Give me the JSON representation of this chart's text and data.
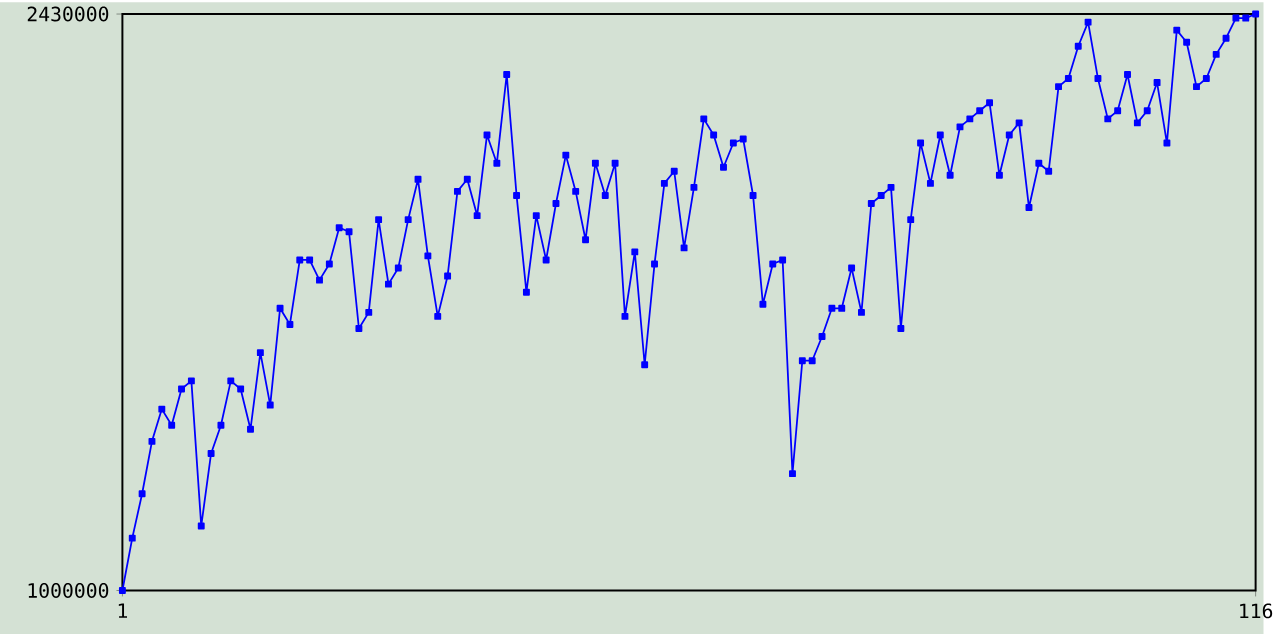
{
  "chart_data": {
    "type": "line",
    "color": "#0000ff",
    "marker": "square",
    "line_style": "solid",
    "xlim": [
      1,
      116
    ],
    "xticks": [
      1,
      116
    ],
    "ylim": [
      1000000,
      2430000
    ],
    "yticks": [
      1000000,
      2430000
    ],
    "x": [
      1,
      2,
      3,
      4,
      5,
      6,
      7,
      8,
      9,
      10,
      11,
      12,
      13,
      14,
      15,
      16,
      17,
      18,
      19,
      20,
      21,
      22,
      23,
      24,
      25,
      26,
      27,
      28,
      29,
      30,
      31,
      32,
      33,
      34,
      35,
      36,
      37,
      38,
      39,
      40,
      41,
      42,
      43,
      44,
      45,
      46,
      47,
      48,
      49,
      50,
      51,
      52,
      53,
      54,
      55,
      56,
      57,
      58,
      59,
      60,
      61,
      62,
      63,
      64,
      65,
      66,
      67,
      68,
      69,
      70,
      71,
      72,
      73,
      74,
      75,
      76,
      77,
      78,
      79,
      80,
      81,
      82,
      83,
      84,
      85,
      86,
      87,
      88,
      89,
      90,
      91,
      92,
      93,
      94,
      95,
      96,
      97,
      98,
      99,
      100,
      101,
      102,
      103,
      104,
      105,
      106,
      107,
      108,
      109,
      110,
      111,
      112,
      113,
      114,
      115,
      116
    ],
    "values": [
      1000000,
      1130000,
      1240000,
      1370000,
      1450000,
      1410000,
      1500000,
      1520000,
      1160000,
      1340000,
      1410000,
      1520000,
      1500000,
      1400000,
      1590000,
      1460000,
      1700000,
      1660000,
      1820000,
      1820000,
      1770000,
      1810000,
      1900000,
      1890000,
      1650000,
      1690000,
      1920000,
      1760000,
      1800000,
      1920000,
      2020000,
      1830000,
      1680000,
      1780000,
      1990000,
      2020000,
      1930000,
      2130000,
      2060000,
      2280000,
      1980000,
      1740000,
      1930000,
      1820000,
      1960000,
      2080000,
      1990000,
      1870000,
      2060000,
      1980000,
      2060000,
      1680000,
      1840000,
      1560000,
      1810000,
      2010000,
      2040000,
      1850000,
      2000000,
      2170000,
      2130000,
      2050000,
      2110000,
      2120000,
      1980000,
      1710000,
      1810000,
      1820000,
      1290000,
      1570000,
      1570000,
      1630000,
      1700000,
      1700000,
      1800000,
      1690000,
      1960000,
      1980000,
      2000000,
      1650000,
      1920000,
      2110000,
      2010000,
      2130000,
      2030000,
      2150000,
      2170000,
      2190000,
      2210000,
      2030000,
      2130000,
      2160000,
      1950000,
      2060000,
      2040000,
      2250000,
      2270000,
      2350000,
      2410000,
      2270000,
      2170000,
      2190000,
      2280000,
      2160000,
      2190000,
      2260000,
      2110000,
      2390000,
      2360000,
      2250000,
      2270000,
      2330000,
      2370000,
      2420000,
      2420000,
      2430000
    ]
  }
}
